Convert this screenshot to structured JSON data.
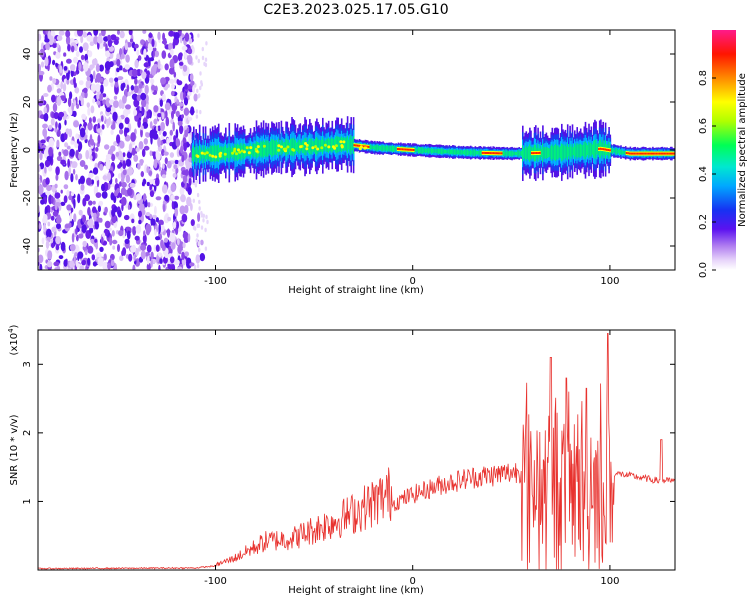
{
  "title": "C2E3.2023.025.17.05.G10",
  "chart_data": [
    {
      "type": "heatmap",
      "title": "C2E3.2023.025.17.05.G10",
      "xlabel": "Height of straight line (km)",
      "ylabel": "Frequency (Hz)",
      "xlim": [
        -190,
        133
      ],
      "ylim": [
        -50,
        50
      ],
      "x_ticks": [
        -100,
        0,
        100
      ],
      "y_ticks": [
        -40,
        -20,
        0,
        20,
        40
      ],
      "colorbar": {
        "label": "Normalized spectral amplitude",
        "range": [
          0.0,
          1.0
        ],
        "ticks": [
          0.0,
          0.2,
          0.4,
          0.6,
          0.8
        ],
        "tick_labels": [
          "0.0",
          "0.2",
          "0.4",
          "0.6",
          "0.8"
        ],
        "colormap": [
          "#ffffff",
          "#c9a3f0",
          "#9a3fe8",
          "#5b12f0",
          "#1622f2",
          "#00d8ff",
          "#00ff66",
          "#b8ff00",
          "#ffff00",
          "#ff7a00",
          "#ff0000",
          "#ff1a7a"
        ]
      },
      "description_values": {
        "noise_region_x": [
          -190,
          -112
        ],
        "signal_ridge": [
          {
            "x": -113,
            "y": -2
          },
          {
            "x": -90,
            "y": -1
          },
          {
            "x": -70,
            "y": 1
          },
          {
            "x": -50,
            "y": 1.5
          },
          {
            "x": -35,
            "y": 2.5
          },
          {
            "x": -20,
            "y": 1
          },
          {
            "x": 0,
            "y": 0
          },
          {
            "x": 25,
            "y": -1
          },
          {
            "x": 50,
            "y": -1.5
          },
          {
            "x": 75,
            "y": -1
          },
          {
            "x": 95,
            "y": 0.5
          },
          {
            "x": 110,
            "y": -1.5
          },
          {
            "x": 133,
            "y": -1.5
          }
        ]
      }
    },
    {
      "type": "line",
      "xlabel": "Height of straight line (km)",
      "ylabel": "SNR (10 * v/v)",
      "y_multiplier_label": "(x10",
      "y_multiplier_exponent": "4",
      "y_multiplier_close": ")",
      "xlim": [
        -190,
        133
      ],
      "ylim": [
        0,
        3.5
      ],
      "x_ticks": [
        -100,
        0,
        100
      ],
      "y_ticks": [
        1,
        2,
        3
      ],
      "color": "#e8322e",
      "envelope": [
        {
          "x": -190,
          "y": 0.02
        },
        {
          "x": -110,
          "y": 0.03
        },
        {
          "x": -100,
          "y": 0.06
        },
        {
          "x": -90,
          "y": 0.15
        },
        {
          "x": -75,
          "y": 0.35
        },
        {
          "x": -60,
          "y": 0.4
        },
        {
          "x": -45,
          "y": 0.55
        },
        {
          "x": -30,
          "y": 0.7
        },
        {
          "x": -15,
          "y": 0.9
        },
        {
          "x": 0,
          "y": 1.1
        },
        {
          "x": 15,
          "y": 1.25
        },
        {
          "x": 30,
          "y": 1.35
        },
        {
          "x": 45,
          "y": 1.4
        },
        {
          "x": 55,
          "y": 1.45
        },
        {
          "x": 65,
          "y": 1.4
        },
        {
          "x": 75,
          "y": 1.35
        },
        {
          "x": 85,
          "y": 1.35
        },
        {
          "x": 95,
          "y": 1.4
        },
        {
          "x": 105,
          "y": 1.4
        },
        {
          "x": 115,
          "y": 1.35
        },
        {
          "x": 125,
          "y": 1.3
        },
        {
          "x": 133,
          "y": 1.3
        }
      ],
      "peaks": [
        {
          "x": 70,
          "y": 3.1
        },
        {
          "x": 78,
          "y": 2.8
        },
        {
          "x": 88,
          "y": 2.65
        },
        {
          "x": 99,
          "y": 3.45
        },
        {
          "x": 126,
          "y": 1.9
        }
      ]
    }
  ]
}
